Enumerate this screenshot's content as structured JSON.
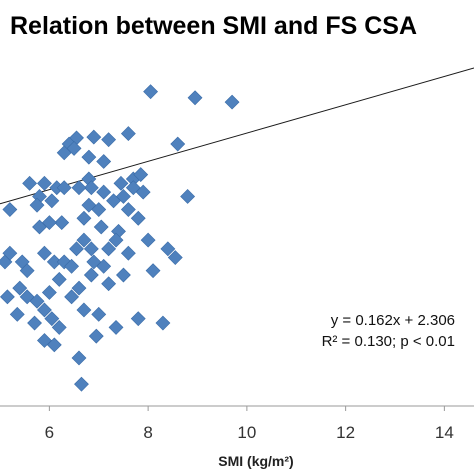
{
  "chart_data": {
    "type": "scatter",
    "title": "Relation between SMI and FS CSA",
    "xlabel": "SMI (kg/m²)",
    "ylabel": "",
    "xlim": [
      5.0,
      14.6
    ],
    "ylim": [
      0.8,
      4.9
    ],
    "x_ticks": [
      6,
      8,
      10,
      12,
      14
    ],
    "grid": false,
    "marker_color": "#4F81BD",
    "trendline": {
      "slope": 0.162,
      "intercept": 2.306
    },
    "annotations": [
      "y = 0.162x + 2.306",
      "R² = 0.130; p < 0.01"
    ],
    "points": [
      [
        8.05,
        4.4
      ],
      [
        8.95,
        4.33
      ],
      [
        9.7,
        4.28
      ],
      [
        6.55,
        3.87
      ],
      [
        6.9,
        3.88
      ],
      [
        7.2,
        3.85
      ],
      [
        6.4,
        3.8
      ],
      [
        6.3,
        3.7
      ],
      [
        7.6,
        3.92
      ],
      [
        6.5,
        3.75
      ],
      [
        8.6,
        3.8
      ],
      [
        6.8,
        3.65
      ],
      [
        7.1,
        3.6
      ],
      [
        5.6,
        3.35
      ],
      [
        5.9,
        3.35
      ],
      [
        6.15,
        3.3
      ],
      [
        5.8,
        3.2
      ],
      [
        5.75,
        3.1
      ],
      [
        6.05,
        3.15
      ],
      [
        6.8,
        3.4
      ],
      [
        6.85,
        3.3
      ],
      [
        6.3,
        3.3
      ],
      [
        7.45,
        3.35
      ],
      [
        7.7,
        3.4
      ],
      [
        7.85,
        3.45
      ],
      [
        6.8,
        3.1
      ],
      [
        7.0,
        3.05
      ],
      [
        7.3,
        3.15
      ],
      [
        7.5,
        3.2
      ],
      [
        7.7,
        3.3
      ],
      [
        7.9,
        3.25
      ],
      [
        8.8,
        3.2
      ],
      [
        7.6,
        3.05
      ],
      [
        7.1,
        3.25
      ],
      [
        6.6,
        3.3
      ],
      [
        5.2,
        3.05
      ],
      [
        5.8,
        2.85
      ],
      [
        6.25,
        2.9
      ],
      [
        6.7,
        2.95
      ],
      [
        7.05,
        2.85
      ],
      [
        7.4,
        2.8
      ],
      [
        7.8,
        2.95
      ],
      [
        6.0,
        2.9
      ],
      [
        5.1,
        2.45
      ],
      [
        5.2,
        2.55
      ],
      [
        5.45,
        2.45
      ],
      [
        5.55,
        2.35
      ],
      [
        5.9,
        2.55
      ],
      [
        6.1,
        2.45
      ],
      [
        6.3,
        2.45
      ],
      [
        6.45,
        2.4
      ],
      [
        6.55,
        2.6
      ],
      [
        6.7,
        2.7
      ],
      [
        6.85,
        2.6
      ],
      [
        7.2,
        2.6
      ],
      [
        7.35,
        2.7
      ],
      [
        7.6,
        2.55
      ],
      [
        8.0,
        2.7
      ],
      [
        8.4,
        2.6
      ],
      [
        8.55,
        2.5
      ],
      [
        6.9,
        2.45
      ],
      [
        7.1,
        2.4
      ],
      [
        5.15,
        2.05
      ],
      [
        5.4,
        2.15
      ],
      [
        5.55,
        2.05
      ],
      [
        5.75,
        2.0
      ],
      [
        6.0,
        2.1
      ],
      [
        6.2,
        2.25
      ],
      [
        6.85,
        2.3
      ],
      [
        7.2,
        2.2
      ],
      [
        7.5,
        2.3
      ],
      [
        8.1,
        2.35
      ],
      [
        6.45,
        2.05
      ],
      [
        6.6,
        2.15
      ],
      [
        5.35,
        1.85
      ],
      [
        5.7,
        1.75
      ],
      [
        5.9,
        1.9
      ],
      [
        6.05,
        1.8
      ],
      [
        6.2,
        1.7
      ],
      [
        6.7,
        1.9
      ],
      [
        7.0,
        1.85
      ],
      [
        7.35,
        1.7
      ],
      [
        7.8,
        1.8
      ],
      [
        8.3,
        1.75
      ],
      [
        5.9,
        1.55
      ],
      [
        6.1,
        1.5
      ],
      [
        6.95,
        1.6
      ],
      [
        6.6,
        1.35
      ],
      [
        6.65,
        1.05
      ]
    ]
  }
}
